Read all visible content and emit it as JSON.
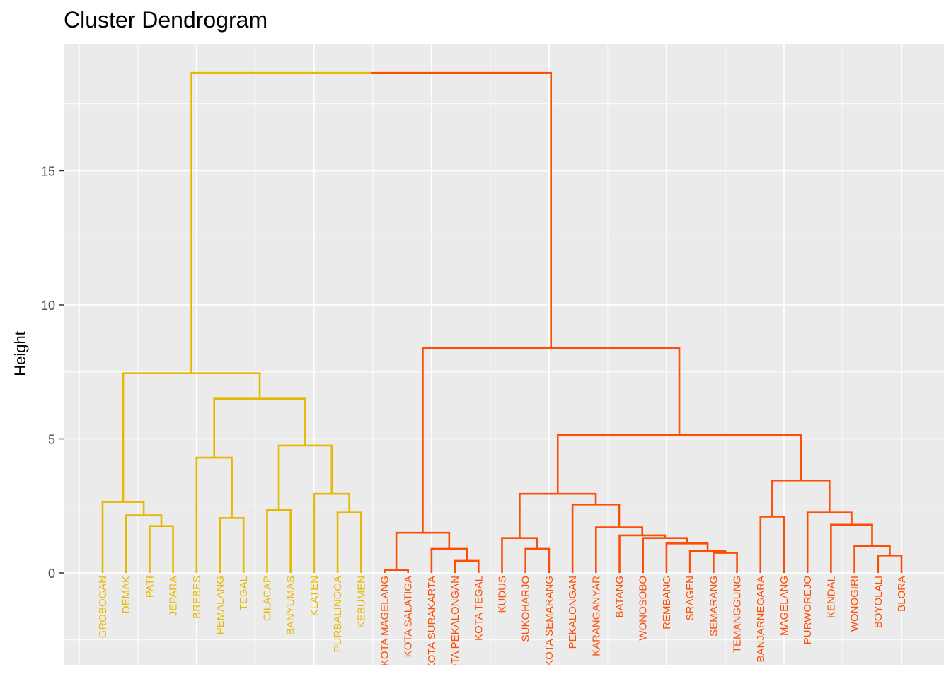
{
  "chart_data": {
    "type": "dendrogram",
    "title": "Cluster Dendrogram",
    "xlabel": "",
    "ylabel": "Height",
    "ylim": [
      -3.2,
      19.5
    ],
    "yticks": [
      0,
      5,
      10,
      15
    ],
    "grid": true,
    "cluster_colors": {
      "A": "#E7B800",
      "B": "#FC4E07"
    },
    "leaves": [
      {
        "label": "GROBOGAN",
        "cluster": "A"
      },
      {
        "label": "DEMAK",
        "cluster": "A"
      },
      {
        "label": "PATI",
        "cluster": "A"
      },
      {
        "label": "JEPARA",
        "cluster": "A"
      },
      {
        "label": "BREBES",
        "cluster": "A"
      },
      {
        "label": "PEMALANG",
        "cluster": "A"
      },
      {
        "label": "TEGAL",
        "cluster": "A"
      },
      {
        "label": "CILACAP",
        "cluster": "A"
      },
      {
        "label": "BANYUMAS",
        "cluster": "A"
      },
      {
        "label": "KLATEN",
        "cluster": "A"
      },
      {
        "label": "PURBALINGGA",
        "cluster": "A"
      },
      {
        "label": "KEBUMEN",
        "cluster": "A"
      },
      {
        "label": "KOTA MAGELANG",
        "cluster": "B"
      },
      {
        "label": "KOTA SALATIGA",
        "cluster": "B"
      },
      {
        "label": "KOTA SURAKARTA",
        "cluster": "B"
      },
      {
        "label": "KOTA PEKALONGAN",
        "cluster": "B"
      },
      {
        "label": "KOTA TEGAL",
        "cluster": "B"
      },
      {
        "label": "KUDUS",
        "cluster": "B"
      },
      {
        "label": "SUKOHARJO",
        "cluster": "B"
      },
      {
        "label": "KOTA SEMARANG",
        "cluster": "B"
      },
      {
        "label": "PEKALONGAN",
        "cluster": "B"
      },
      {
        "label": "KARANGANYAR",
        "cluster": "B"
      },
      {
        "label": "BATANG",
        "cluster": "B"
      },
      {
        "label": "WONOSOBO",
        "cluster": "B"
      },
      {
        "label": "REMBANG",
        "cluster": "B"
      },
      {
        "label": "SRAGEN",
        "cluster": "B"
      },
      {
        "label": "SEMARANG",
        "cluster": "B"
      },
      {
        "label": "TEMANGGUNG",
        "cluster": "B"
      },
      {
        "label": "BANJARNEGARA",
        "cluster": "B"
      },
      {
        "label": "MAGELANG",
        "cluster": "B"
      },
      {
        "label": "PURWOREJO",
        "cluster": "B"
      },
      {
        "label": "KENDAL",
        "cluster": "B"
      },
      {
        "label": "WONOGIRI",
        "cluster": "B"
      },
      {
        "label": "BOYOLALI",
        "cluster": "B"
      },
      {
        "label": "BLORA",
        "cluster": "B"
      }
    ],
    "merges": [
      {
        "id": "m_patijepara",
        "left": 2,
        "right": 3,
        "height": 1.75
      },
      {
        "id": "m_demak",
        "left": 1,
        "right": "m_patijepara",
        "height": 2.15
      },
      {
        "id": "m_grobogan",
        "left": 0,
        "right": "m_demak",
        "height": 2.65
      },
      {
        "id": "m_pemtegal",
        "left": 5,
        "right": 6,
        "height": 2.05
      },
      {
        "id": "m_brebes",
        "left": 4,
        "right": "m_pemtegal",
        "height": 4.3
      },
      {
        "id": "m_cilbany",
        "left": 7,
        "right": 8,
        "height": 2.35
      },
      {
        "id": "m_purbkeb",
        "left": 10,
        "right": 11,
        "height": 2.25
      },
      {
        "id": "m_klaten",
        "left": 9,
        "right": "m_purbkeb",
        "height": 2.95
      },
      {
        "id": "m_southwest",
        "left": "m_cilbany",
        "right": "m_klaten",
        "height": 4.75
      },
      {
        "id": "m_west",
        "left": "m_brebes",
        "right": "m_southwest",
        "height": 6.5
      },
      {
        "id": "m_clusterA",
        "left": "m_grobogan",
        "right": "m_west",
        "height": 7.45
      },
      {
        "id": "m_mgsal",
        "left": 12,
        "right": 13,
        "height": 0.1
      },
      {
        "id": "m_pektegal",
        "left": 15,
        "right": 16,
        "height": 0.45
      },
      {
        "id": "m_surakarta",
        "left": 14,
        "right": "m_pektegal",
        "height": 0.9
      },
      {
        "id": "m_cities",
        "left": "m_mgsal",
        "right": "m_surakarta",
        "height": 1.5
      },
      {
        "id": "m_sukosem",
        "left": 18,
        "right": 19,
        "height": 0.9
      },
      {
        "id": "m_kudus",
        "left": 17,
        "right": "m_sukosem",
        "height": 1.3
      },
      {
        "id": "m_semtem",
        "left": 26,
        "right": 27,
        "height": 0.75
      },
      {
        "id": "m_sragen",
        "left": 25,
        "right": "m_semtem",
        "height": 0.82
      },
      {
        "id": "m_rembang",
        "left": 24,
        "right": "m_sragen",
        "height": 1.1
      },
      {
        "id": "m_wonosobo",
        "left": 23,
        "right": "m_rembang",
        "height": 1.3
      },
      {
        "id": "m_batang",
        "left": 22,
        "right": "m_wonosobo",
        "height": 1.4
      },
      {
        "id": "m_karanganyar",
        "left": 21,
        "right": "m_batang",
        "height": 1.7
      },
      {
        "id": "m_pekalongan",
        "left": 20,
        "right": "m_karanganyar",
        "height": 2.55
      },
      {
        "id": "m_central",
        "left": "m_kudus",
        "right": "m_pekalongan",
        "height": 2.95
      },
      {
        "id": "m_banjmag",
        "left": 28,
        "right": 29,
        "height": 2.1
      },
      {
        "id": "m_boyblora",
        "left": 33,
        "right": 34,
        "height": 0.65
      },
      {
        "id": "m_wonogiri",
        "left": 32,
        "right": "m_boyblora",
        "height": 1.0
      },
      {
        "id": "m_kendal",
        "left": 31,
        "right": "m_wonogiri",
        "height": 1.8
      },
      {
        "id": "m_purworejo",
        "left": 30,
        "right": "m_kendal",
        "height": 2.25
      },
      {
        "id": "m_south",
        "left": "m_banjmag",
        "right": "m_purworejo",
        "height": 3.45
      },
      {
        "id": "m_rest",
        "left": "m_central",
        "right": "m_south",
        "height": 5.15
      },
      {
        "id": "m_clusterB",
        "left": "m_cities",
        "right": "m_rest",
        "height": 8.4
      },
      {
        "id": "m_root",
        "left": "m_clusterA",
        "right": "m_clusterB",
        "height": 18.65
      }
    ]
  }
}
